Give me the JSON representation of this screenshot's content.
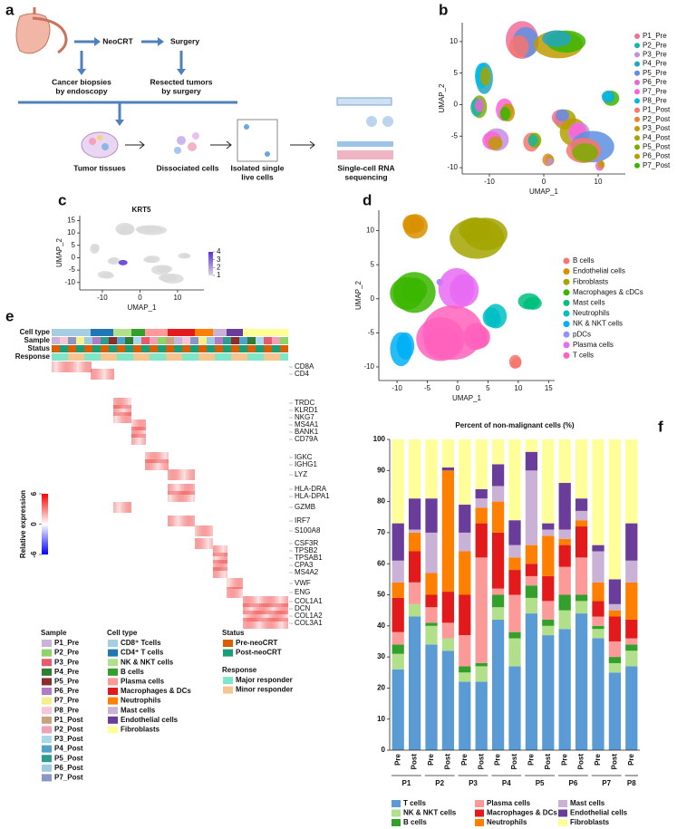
{
  "panel_labels": [
    "a",
    "b",
    "c",
    "d",
    "e",
    "f"
  ],
  "workflow": {
    "neocrt": "NeoCRT",
    "surgery": "Surgery",
    "biopsies": [
      "Cancer biopsies",
      "by endoscopy"
    ],
    "resected": [
      "Resected tumors",
      "by surgery"
    ],
    "tumor": [
      "Tumor tissues"
    ],
    "dissociated": [
      "Dissociated cells"
    ],
    "isolated": [
      "Isolated single",
      "live cells"
    ],
    "sequencing": [
      "Single-cell RNA",
      "sequencing"
    ]
  },
  "chart_data": [
    {
      "type": "scatter",
      "xlabel": "UMAP_1",
      "ylabel": "UMAP_2",
      "xlim": [
        -15,
        15
      ],
      "ylim": [
        -11,
        13
      ],
      "xticks": [
        -10,
        0,
        10
      ],
      "yticks": [
        -10,
        -5,
        0,
        5,
        10
      ],
      "series": [
        {
          "name": "P1_Pre",
          "color": "#f06f9b"
        },
        {
          "name": "P2_Pre",
          "color": "#19b5a5"
        },
        {
          "name": "P3_Pre",
          "color": "#c78de0"
        },
        {
          "name": "P4_Pre",
          "color": "#1fa7c2"
        },
        {
          "name": "P5_Pre",
          "color": "#5e8fe0"
        },
        {
          "name": "P6_Pre",
          "color": "#e36ad4"
        },
        {
          "name": "P7_Pre",
          "color": "#fb61d7"
        },
        {
          "name": "P8_Pre",
          "color": "#00b8e7"
        },
        {
          "name": "P1_Post",
          "color": "#f8766d"
        },
        {
          "name": "P2_Post",
          "color": "#ea8331"
        },
        {
          "name": "P3_Post",
          "color": "#c09b00"
        },
        {
          "name": "P4_Post",
          "color": "#a3a500"
        },
        {
          "name": "P5_Post",
          "color": "#7cae00"
        },
        {
          "name": "P6_Post",
          "color": "#b79f00"
        },
        {
          "name": "P7_Post",
          "color": "#39b600"
        }
      ]
    },
    {
      "type": "feature",
      "title": "KRT5",
      "xlabel": "UMAP_1",
      "ylabel": "UMAP_2",
      "xlim": [
        -16,
        17
      ],
      "ylim": [
        -13,
        17
      ],
      "xticks": [
        -10,
        0,
        10
      ],
      "yticks": [
        -10,
        -5,
        0,
        5,
        10,
        15
      ],
      "colorbar": {
        "ticks": [
          1,
          2,
          3,
          4
        ],
        "colors": [
          "#d9d9d9",
          "#5b2fd6"
        ]
      }
    },
    {
      "type": "scatter",
      "xlabel": "UMAP_1",
      "ylabel": "UMAP_2",
      "xlim": [
        -13,
        16
      ],
      "ylim": [
        -12,
        13
      ],
      "xticks": [
        -10,
        -5,
        0,
        5,
        10,
        15
      ],
      "yticks": [
        -10,
        -5,
        0,
        5,
        10
      ],
      "series": [
        {
          "name": "B cells",
          "color": "#f8766d"
        },
        {
          "name": "Endothelial cells",
          "color": "#d89000"
        },
        {
          "name": "Fibroblasts",
          "color": "#a3a500"
        },
        {
          "name": "Macrophages & cDCs",
          "color": "#39b600"
        },
        {
          "name": "Mast cells",
          "color": "#00bf7d"
        },
        {
          "name": "Neutrophils",
          "color": "#00bfc4"
        },
        {
          "name": "NK & NKT cells",
          "color": "#00b0f6"
        },
        {
          "name": "pDCs",
          "color": "#9590ff"
        },
        {
          "name": "Plasma cells",
          "color": "#e76bf3"
        },
        {
          "name": "T cells",
          "color": "#ff62bc"
        }
      ]
    },
    {
      "type": "heatmap",
      "annotations": [
        "Cell type",
        "Sample",
        "Status",
        "Response"
      ],
      "genes": [
        "CD8A",
        "CD4",
        "TRDC",
        "KLRD1",
        "NKG7",
        "MS4A1",
        "BANK1",
        "CD79A",
        "IGKC",
        "IGHG1",
        "LYZ",
        "HLA-DRA",
        "HLA-DPA1",
        "GZMB",
        "IRF7",
        "S100A8",
        "CSF3R",
        "TPSB2",
        "TPSAB1",
        "CPA3",
        "MS4A2",
        "VWF",
        "ENG",
        "COL1A1",
        "DCN",
        "COL1A2",
        "COL3A1"
      ],
      "colorbar": {
        "label": "Relative expression",
        "ticks": [
          -6,
          0,
          6
        ],
        "colors": [
          "#0000ff",
          "#ffffff",
          "#ff0000"
        ]
      },
      "legends": [
        {
          "title": "Sample",
          "items": [
            {
              "name": "P1_Pre",
              "color": "#c9b3d9"
            },
            {
              "name": "P2_Pre",
              "color": "#8fd46b"
            },
            {
              "name": "P3_Pre",
              "color": "#e8596b"
            },
            {
              "name": "P4_Pre",
              "color": "#2f7d32"
            },
            {
              "name": "P5_Pre",
              "color": "#8c2d2d"
            },
            {
              "name": "P6_Pre",
              "color": "#b07cc6"
            },
            {
              "name": "P7_Pre",
              "color": "#f5f08a"
            },
            {
              "name": "P8_Pre",
              "color": "#f7c6d6"
            },
            {
              "name": "P1_Post",
              "color": "#c9a27e"
            },
            {
              "name": "P2_Post",
              "color": "#f0a1b5"
            },
            {
              "name": "P3_Post",
              "color": "#a8d8ea"
            },
            {
              "name": "P4_Post",
              "color": "#4fa3c7"
            },
            {
              "name": "P5_Post",
              "color": "#2a9d8f"
            },
            {
              "name": "P6_Post",
              "color": "#9ecae1"
            },
            {
              "name": "P7_Post",
              "color": "#8c96c6"
            }
          ]
        },
        {
          "title": "Cell type",
          "items": [
            {
              "name": "CD8⁺ Tcells",
              "color": "#a6cee3"
            },
            {
              "name": "CD4⁺ T cells",
              "color": "#1f78b4"
            },
            {
              "name": "NK & NKT cells",
              "color": "#b2df8a"
            },
            {
              "name": "B cells",
              "color": "#33a02c"
            },
            {
              "name": "Plasma cells",
              "color": "#fb9a99"
            },
            {
              "name": "Macrophages & DCs",
              "color": "#e31a1c"
            },
            {
              "name": "Neutrophils",
              "color": "#ff7f00"
            },
            {
              "name": "Mast cells",
              "color": "#cab2d6"
            },
            {
              "name": "Endothelial cells",
              "color": "#6a3d9a"
            },
            {
              "name": "Fibroblasts",
              "color": "#ffff99"
            }
          ]
        },
        {
          "title": "Status",
          "items": [
            {
              "name": "Pre-neoCRT",
              "color": "#d95f02"
            },
            {
              "name": "Post-neoCRT",
              "color": "#1b9e77"
            }
          ]
        },
        {
          "title": "Response",
          "items": [
            {
              "name": "Major responder",
              "color": "#80e6c8"
            },
            {
              "name": "Minor responder",
              "color": "#f6c48e"
            }
          ]
        }
      ]
    },
    {
      "type": "stacked_bar",
      "title": "Percent of non-malignant cells (%)",
      "categories": [
        "Pre",
        "Post",
        "Pre",
        "Post",
        "Pre",
        "Post",
        "Pre",
        "Post",
        "Pre",
        "Post",
        "Pre",
        "Post",
        "Pre",
        "Post",
        "Pre"
      ],
      "groups": [
        "P1",
        "P2",
        "P3",
        "P4",
        "P5",
        "P6",
        "P7",
        "P8"
      ],
      "ylim": [
        0,
        100
      ],
      "yticks": [
        0,
        10,
        20,
        30,
        40,
        50,
        60,
        70,
        80,
        90,
        100
      ],
      "series": [
        {
          "name": "T cells",
          "color": "#5b9bd5",
          "values": [
            26,
            43,
            34,
            32,
            22,
            22,
            42,
            27,
            44,
            37,
            39,
            44,
            36,
            25,
            27
          ]
        },
        {
          "name": "NK & NKT cells",
          "color": "#b2df8a",
          "values": [
            5,
            4,
            6,
            4,
            3,
            5,
            4,
            9,
            5,
            3,
            6,
            4,
            3,
            3,
            5
          ]
        },
        {
          "name": "B cells",
          "color": "#33a02c",
          "values": [
            3,
            0,
            1,
            0,
            2,
            1,
            4,
            2,
            4,
            2,
            5,
            2,
            1,
            2,
            2
          ]
        },
        {
          "name": "Plasma cells",
          "color": "#fb9a99",
          "values": [
            4,
            7,
            5,
            5,
            10,
            34,
            2,
            12,
            3,
            6,
            9,
            12,
            3,
            5,
            2
          ]
        },
        {
          "name": "Macrophages & DCs",
          "color": "#e31a1c",
          "values": [
            11,
            10,
            4,
            10,
            13,
            11,
            18,
            8,
            4,
            8,
            7,
            10,
            5,
            8,
            6
          ]
        },
        {
          "name": "Neutrophils",
          "color": "#ff7f00",
          "values": [
            5,
            6,
            7,
            39,
            14,
            5,
            10,
            4,
            6,
            13,
            2,
            2,
            6,
            2,
            12
          ]
        },
        {
          "name": "Mast cells",
          "color": "#cab2d6",
          "values": [
            7,
            1,
            13,
            0,
            6,
            3,
            5,
            4,
            24,
            2,
            3,
            3,
            10,
            2,
            7
          ]
        },
        {
          "name": "Endothelial cells",
          "color": "#6a3d9a",
          "values": [
            12,
            10,
            11,
            1,
            9,
            3,
            7,
            8,
            6,
            2,
            15,
            4,
            2,
            8,
            12
          ]
        },
        {
          "name": "Fibroblasts",
          "color": "#ffff99",
          "values": [
            27,
            19,
            19,
            9,
            21,
            16,
            8,
            26,
            4,
            27,
            14,
            19,
            34,
            45,
            27
          ]
        }
      ]
    }
  ]
}
